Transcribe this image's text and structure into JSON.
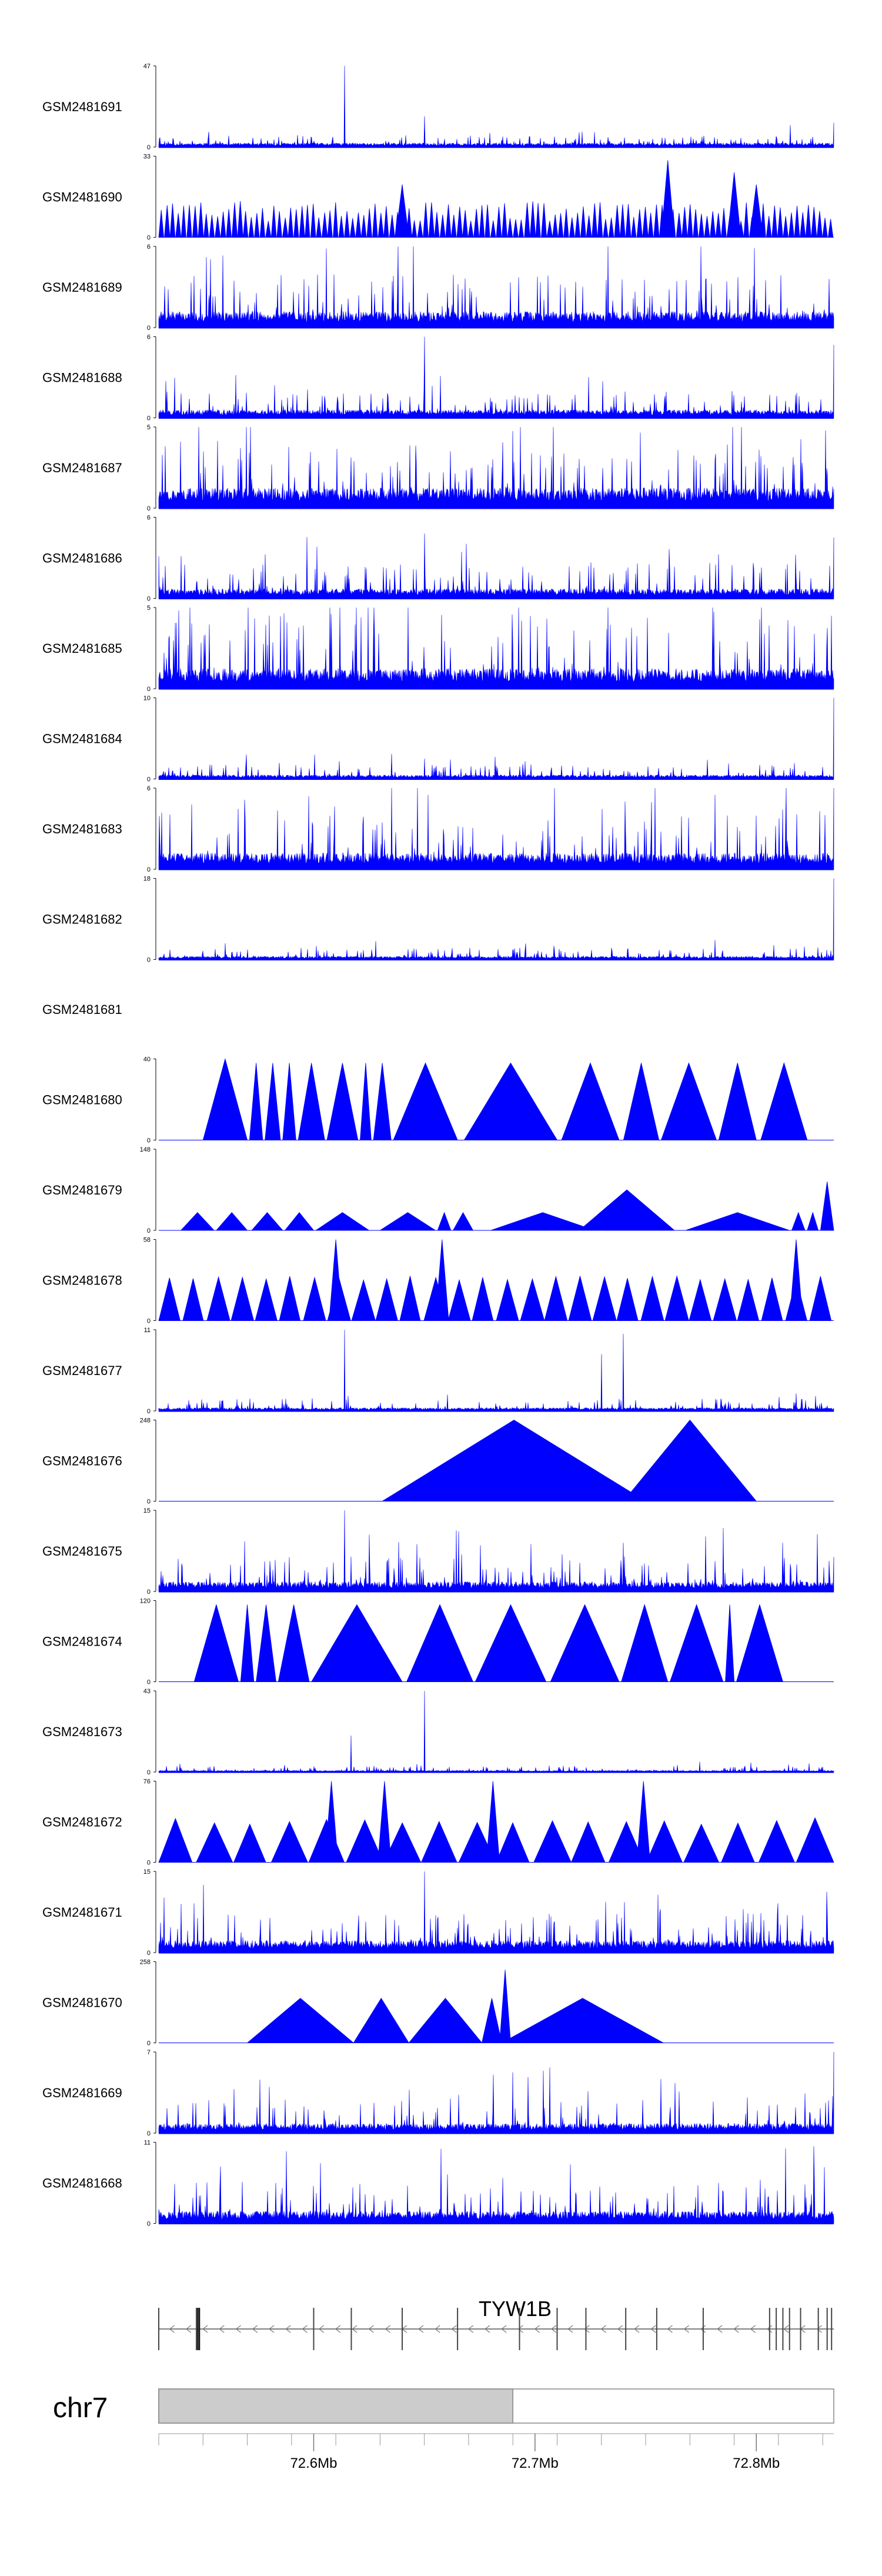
{
  "chart_data": {
    "type": "area",
    "chromosome": "chr7",
    "gene": {
      "name": "TYW1B",
      "strand": "-",
      "start_mb": 72.53,
      "end_mb": 72.835,
      "exons_mb": [
        72.53,
        72.547,
        72.548,
        72.548,
        72.6,
        72.617,
        72.64,
        72.665,
        72.693,
        72.71,
        72.723,
        72.741,
        72.755,
        72.776,
        72.806,
        72.809,
        72.812,
        72.815,
        72.82,
        72.828,
        72.832,
        72.834
      ]
    },
    "x_range_mb": [
      72.53,
      72.835
    ],
    "highlight_range_mb": [
      72.53,
      72.69
    ],
    "x_ticks": [
      {
        "value": 72.6,
        "label": "72.6Mb"
      },
      {
        "value": 72.7,
        "label": "72.7Mb"
      },
      {
        "value": 72.8,
        "label": "72.8Mb"
      }
    ],
    "minor_ticks_mb": [
      72.53,
      72.55,
      72.57,
      72.59,
      72.61,
      72.63,
      72.65,
      72.67,
      72.69,
      72.71,
      72.73,
      72.75,
      72.77,
      72.79,
      72.81,
      72.83
    ],
    "series": [
      {
        "name": "GSM2481691",
        "ymax": 47,
        "style": "dense",
        "base": 0.05,
        "spread": 0.1,
        "seed": 11,
        "peaks": [
          [
            72.614,
            1.0
          ],
          [
            72.65,
            0.38
          ],
          [
            72.835,
            0.3
          ]
        ]
      },
      {
        "name": "GSM2481690",
        "ymax": 33,
        "style": "tri",
        "mode": "auto",
        "n": 120,
        "lo": 0.2,
        "hi": 0.45,
        "seed": 3,
        "peaks": [
          [
            72.64,
            0.65
          ],
          [
            72.76,
            0.95
          ],
          [
            72.79,
            0.8
          ],
          [
            72.8,
            0.65
          ]
        ]
      },
      {
        "name": "GSM2481689",
        "ymax": 6,
        "style": "dense",
        "base": 0.2,
        "spread": 0.5,
        "seed": 7,
        "peaks": [
          [
            72.733,
            1.0
          ],
          [
            72.663,
            0.65
          ]
        ]
      },
      {
        "name": "GSM2481688",
        "ymax": 6,
        "style": "dense",
        "base": 0.1,
        "spread": 0.25,
        "seed": 13,
        "peaks": [
          [
            72.65,
            1.0
          ],
          [
            72.835,
            0.9
          ],
          [
            72.54,
            0.3
          ]
        ]
      },
      {
        "name": "GSM2481687",
        "ymax": 5,
        "style": "dense",
        "base": 0.25,
        "spread": 0.6,
        "seed": 17,
        "peaks": [
          [
            72.69,
            0.95
          ],
          [
            72.82,
            0.85
          ]
        ]
      },
      {
        "name": "GSM2481686",
        "ymax": 6,
        "style": "dense",
        "base": 0.12,
        "spread": 0.35,
        "seed": 19,
        "peaks": [
          [
            72.65,
            0.8
          ],
          [
            72.835,
            0.75
          ],
          [
            72.533,
            0.4
          ]
        ]
      },
      {
        "name": "GSM2481685",
        "ymax": 5,
        "style": "dense",
        "base": 0.25,
        "spread": 0.75,
        "seed": 23,
        "peaks": [
          [
            72.58,
            0.9
          ],
          [
            72.733,
            1.0
          ]
        ]
      },
      {
        "name": "GSM2481684",
        "ymax": 10,
        "style": "dense",
        "base": 0.05,
        "spread": 0.15,
        "seed": 29,
        "peaks": [
          [
            72.835,
            1.0
          ],
          [
            72.65,
            0.25
          ]
        ]
      },
      {
        "name": "GSM2481683",
        "ymax": 6,
        "style": "dense",
        "base": 0.2,
        "spread": 0.6,
        "seed": 31,
        "peaks": [
          [
            72.835,
            1.0
          ],
          [
            72.545,
            0.8
          ]
        ]
      },
      {
        "name": "GSM2481682",
        "ymax": 18,
        "style": "dense",
        "base": 0.04,
        "spread": 0.12,
        "seed": 37,
        "peaks": [
          [
            72.835,
            1.0
          ],
          [
            72.56,
            0.2
          ]
        ]
      },
      {
        "name": "GSM2481681",
        "style": "empty"
      },
      {
        "name": "GSM2481680",
        "ymax": 40,
        "style": "tri",
        "mode": "list",
        "seed": 41,
        "tris": [
          [
            72.55,
            72.57,
            1.0
          ],
          [
            72.571,
            72.577,
            0.95
          ],
          [
            72.578,
            72.585,
            0.95
          ],
          [
            72.586,
            72.592,
            0.95
          ],
          [
            72.593,
            72.605,
            0.95
          ],
          [
            72.606,
            72.62,
            0.95
          ],
          [
            72.621,
            72.626,
            0.95
          ],
          [
            72.627,
            72.635,
            0.95
          ],
          [
            72.636,
            72.665,
            0.95
          ],
          [
            72.668,
            72.71,
            0.95
          ],
          [
            72.712,
            72.738,
            0.95
          ],
          [
            72.74,
            72.756,
            0.95
          ],
          [
            72.757,
            72.782,
            0.95
          ],
          [
            72.783,
            72.8,
            0.95
          ],
          [
            72.802,
            72.823,
            0.95
          ]
        ]
      },
      {
        "name": "GSM2481679",
        "ymax": 148,
        "style": "tri",
        "mode": "list",
        "seed": 43,
        "tris": [
          [
            72.54,
            72.555,
            0.22
          ],
          [
            72.556,
            72.57,
            0.22
          ],
          [
            72.572,
            72.586,
            0.22
          ],
          [
            72.587,
            72.6,
            0.22
          ],
          [
            72.601,
            72.625,
            0.22
          ],
          [
            72.63,
            72.655,
            0.22
          ],
          [
            72.656,
            72.662,
            0.22
          ],
          [
            72.663,
            72.672,
            0.22
          ],
          [
            72.68,
            72.727,
            0.22
          ],
          [
            72.72,
            72.763,
            0.5
          ],
          [
            72.768,
            72.815,
            0.22
          ],
          [
            72.816,
            72.822,
            0.22
          ],
          [
            72.823,
            72.828,
            0.22
          ],
          [
            72.829,
            72.835,
            0.6
          ]
        ]
      },
      {
        "name": "GSM2481678",
        "ymax": 58,
        "style": "tri",
        "mode": "auto",
        "n": 28,
        "lo": 0.5,
        "hi": 0.55,
        "seed": 47,
        "peaks": [
          [
            72.61,
            1.0
          ],
          [
            72.658,
            1.0
          ],
          [
            72.818,
            1.0
          ]
        ]
      },
      {
        "name": "GSM2481677",
        "ymax": 11,
        "style": "dense",
        "base": 0.04,
        "spread": 0.12,
        "seed": 53,
        "peaks": [
          [
            72.614,
            1.0
          ],
          [
            72.74,
            0.95
          ],
          [
            72.73,
            0.7
          ]
        ]
      },
      {
        "name": "GSM2481676",
        "ymax": 248,
        "style": "tri",
        "mode": "list",
        "seed": 59,
        "tris": [
          [
            72.631,
            72.75,
            1.0
          ],
          [
            72.74,
            72.8,
            1.0
          ]
        ]
      },
      {
        "name": "GSM2481675",
        "ymax": 15,
        "style": "dense",
        "base": 0.12,
        "spread": 0.35,
        "seed": 61,
        "peaks": [
          [
            72.614,
            1.0
          ],
          [
            72.625,
            0.7
          ],
          [
            72.74,
            0.6
          ],
          [
            72.812,
            0.6
          ]
        ]
      },
      {
        "name": "GSM2481674",
        "ymax": 120,
        "style": "tri",
        "mode": "list",
        "seed": 67,
        "tris": [
          [
            72.546,
            72.566,
            0.95
          ],
          [
            72.567,
            72.573,
            0.95
          ],
          [
            72.574,
            72.583,
            0.95
          ],
          [
            72.584,
            72.598,
            0.95
          ],
          [
            72.599,
            72.64,
            0.95
          ],
          [
            72.642,
            72.672,
            0.95
          ],
          [
            72.673,
            72.705,
            0.95
          ],
          [
            72.707,
            72.738,
            0.95
          ],
          [
            72.739,
            72.76,
            0.95
          ],
          [
            72.761,
            72.785,
            0.95
          ],
          [
            72.786,
            72.79,
            0.95
          ],
          [
            72.791,
            72.812,
            0.95
          ]
        ]
      },
      {
        "name": "GSM2481673",
        "ymax": 43,
        "style": "dense",
        "base": 0.02,
        "spread": 0.06,
        "seed": 71,
        "peaks": [
          [
            72.65,
            1.0
          ],
          [
            72.617,
            0.45
          ]
        ]
      },
      {
        "name": "GSM2481672",
        "ymax": 76,
        "style": "tri",
        "mode": "auto",
        "n": 18,
        "lo": 0.45,
        "hi": 0.55,
        "seed": 73,
        "peaks": [
          [
            72.608,
            1.0
          ],
          [
            72.632,
            1.0
          ],
          [
            72.681,
            1.0
          ],
          [
            72.749,
            1.0
          ]
        ]
      },
      {
        "name": "GSM2481671",
        "ymax": 15,
        "style": "dense",
        "base": 0.15,
        "spread": 0.4,
        "seed": 79,
        "peaks": [
          [
            72.65,
            1.0
          ],
          [
            72.54,
            0.6
          ]
        ]
      },
      {
        "name": "GSM2481670",
        "ymax": 258,
        "style": "tri",
        "mode": "list",
        "seed": 83,
        "tris": [
          [
            72.57,
            72.618,
            0.55
          ],
          [
            72.618,
            72.643,
            0.55
          ],
          [
            72.643,
            72.676,
            0.55
          ],
          [
            72.676,
            72.685,
            0.55
          ],
          [
            72.685,
            72.758,
            0.55
          ],
          [
            72.684,
            72.689,
            0.9
          ]
        ]
      },
      {
        "name": "GSM2481669",
        "ymax": 7,
        "style": "dense",
        "base": 0.12,
        "spread": 0.35,
        "seed": 89,
        "peaks": [
          [
            72.835,
            1.0
          ],
          [
            72.69,
            0.75
          ]
        ]
      },
      {
        "name": "GSM2481668",
        "ymax": 11,
        "style": "dense",
        "base": 0.15,
        "spread": 0.4,
        "seed": 97,
        "peaks": [
          [
            72.826,
            0.95
          ],
          [
            72.558,
            0.7
          ]
        ]
      }
    ]
  }
}
